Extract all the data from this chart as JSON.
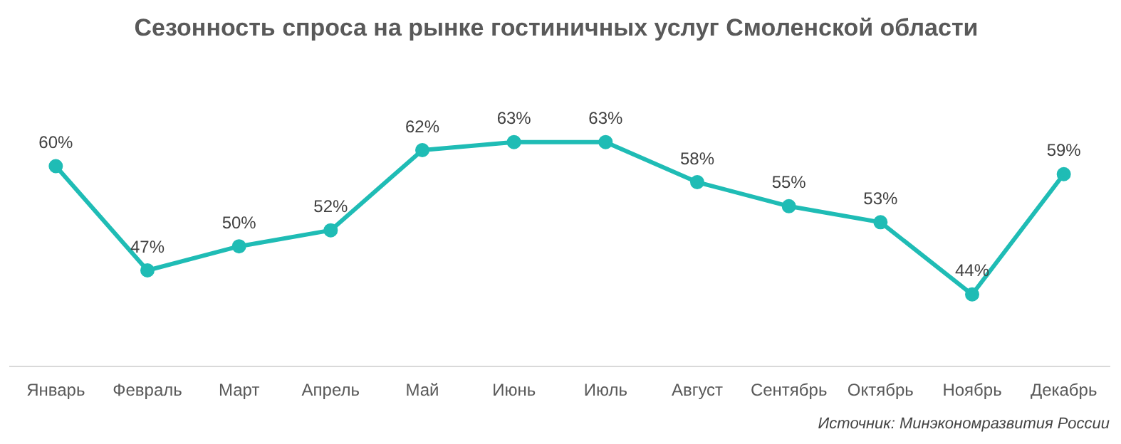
{
  "chart_data": {
    "type": "line",
    "title": "Сезонность спроса на рынке гостиничных услуг Смоленской области",
    "categories": [
      "Январь",
      "Февраль",
      "Март",
      "Апрель",
      "Май",
      "Июнь",
      "Июль",
      "Август",
      "Сентябрь",
      "Октябрь",
      "Ноябрь",
      "Декабрь"
    ],
    "series": [
      {
        "color": "#1fbcb5",
        "values": [
          60,
          47,
          50,
          52,
          62,
          63,
          63,
          58,
          55,
          53,
          44,
          59
        ],
        "value_labels": [
          "60%",
          "47%",
          "50%",
          "52%",
          "62%",
          "63%",
          "63%",
          "58%",
          "55%",
          "53%",
          "44%",
          "59%"
        ]
      }
    ],
    "tick_labels": "x",
    "grid": false,
    "legend": false,
    "marker": "circle",
    "line_style": "solid",
    "annotations": [
      "Источник: Минэкономразвития России"
    ]
  }
}
